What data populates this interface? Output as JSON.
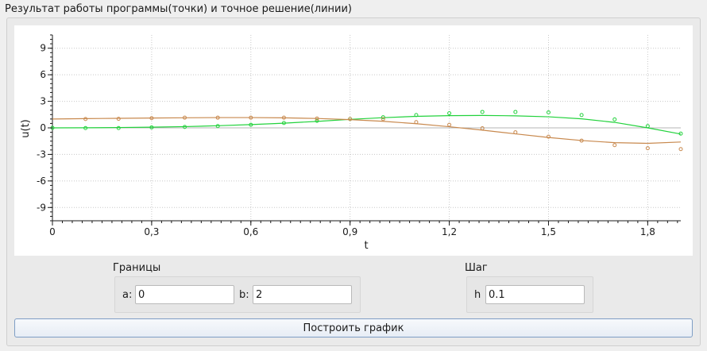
{
  "window": {
    "group_title": "Результат работы программы(точки) и точное решение(линии)"
  },
  "chart_data": {
    "type": "line",
    "title": "",
    "xlabel": "t",
    "ylabel": "u(t)",
    "xlim": [
      0,
      1.9
    ],
    "ylim": [
      -10.5,
      10.5
    ],
    "x_ticks": [
      "0",
      "0,3",
      "0,6",
      "0,9",
      "1,2",
      "1,5",
      "1,8"
    ],
    "x_tick_values": [
      0,
      0.3,
      0.6,
      0.9,
      1.2,
      1.5,
      1.8
    ],
    "y_ticks": [
      "9",
      "6",
      "3",
      "0",
      "-3",
      "-6",
      "-9"
    ],
    "y_tick_values": [
      9,
      6,
      3,
      0,
      -3,
      -6,
      -9
    ],
    "grid": true,
    "series": [
      {
        "color": "#22d23c",
        "style": "line",
        "x": [
          0,
          0.1,
          0.2,
          0.3,
          0.4,
          0.5,
          0.6,
          0.7,
          0.8,
          0.9,
          1.0,
          1.1,
          1.2,
          1.3,
          1.4,
          1.5,
          1.6,
          1.7,
          1.8,
          1.9
        ],
        "values": [
          0.0,
          0.01,
          0.04,
          0.08,
          0.14,
          0.24,
          0.37,
          0.53,
          0.73,
          0.96,
          1.15,
          1.3,
          1.38,
          1.4,
          1.36,
          1.25,
          1.02,
          0.62,
          0.0,
          -0.7
        ]
      },
      {
        "color": "#22d23c",
        "style": "points",
        "x": [
          0,
          0.1,
          0.2,
          0.3,
          0.4,
          0.5,
          0.6,
          0.7,
          0.8,
          0.9,
          1.0,
          1.1,
          1.2,
          1.3,
          1.4,
          1.5,
          1.6,
          1.7,
          1.8,
          1.9
        ],
        "values": [
          0.0,
          -0.02,
          -0.02,
          0.05,
          0.1,
          0.2,
          0.35,
          0.55,
          0.8,
          1.0,
          1.2,
          1.45,
          1.65,
          1.8,
          1.8,
          1.75,
          1.45,
          0.95,
          0.2,
          -0.65
        ]
      },
      {
        "color": "#c8894e",
        "style": "line",
        "x": [
          0,
          0.1,
          0.2,
          0.3,
          0.4,
          0.5,
          0.6,
          0.7,
          0.8,
          0.9,
          1.0,
          1.1,
          1.2,
          1.3,
          1.4,
          1.5,
          1.6,
          1.7,
          1.8,
          1.9
        ],
        "values": [
          1.0,
          1.04,
          1.08,
          1.11,
          1.14,
          1.16,
          1.16,
          1.13,
          1.06,
          0.93,
          0.74,
          0.47,
          0.13,
          -0.26,
          -0.68,
          -1.09,
          -1.43,
          -1.67,
          -1.75,
          -1.6
        ]
      },
      {
        "color": "#c8894e",
        "style": "points",
        "x": [
          0.1,
          0.2,
          0.3,
          0.4,
          0.5,
          0.6,
          0.7,
          0.8,
          0.9,
          1.0,
          1.1,
          1.2,
          1.3,
          1.4,
          1.5,
          1.6,
          1.7,
          1.8,
          1.9
        ],
        "values": [
          1.0,
          1.02,
          1.1,
          1.15,
          1.15,
          1.15,
          1.15,
          1.05,
          1.0,
          1.0,
          0.65,
          0.35,
          -0.05,
          -0.5,
          -1.0,
          -1.45,
          -1.95,
          -2.3,
          -2.4
        ]
      }
    ]
  },
  "bounds": {
    "title": "Границы",
    "a_label": "a:",
    "a_value": "0",
    "b_label": "b:",
    "b_value": "2"
  },
  "step": {
    "title": "Шаг",
    "h_label": "h",
    "h_value": "0.1"
  },
  "plot_button": {
    "label": "Построить график"
  }
}
